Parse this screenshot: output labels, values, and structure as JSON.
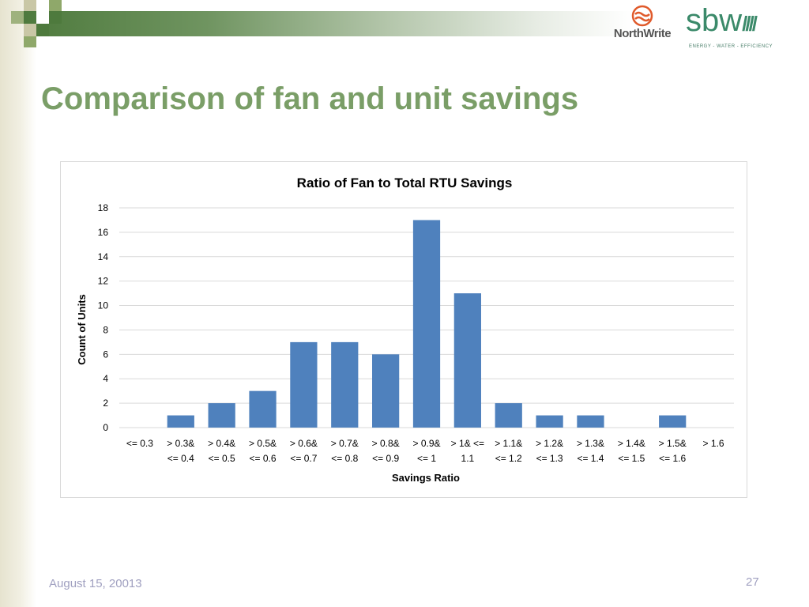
{
  "slide": {
    "title": "Comparison of fan and unit savings",
    "footer_date": "August 15, 20013",
    "page_number": "27",
    "logos": {
      "northwrite": "NorthWrite",
      "sbw": "sbw",
      "sbw_tagline": "ENERGY - WATER - EFFICIENCY"
    },
    "colors": {
      "title": "#7a9e67",
      "bar": "#4f81bd",
      "band_dark": "#4e7a3d",
      "northwrite_icon": "#e05a2b",
      "sbw": "#3b8a6a"
    }
  },
  "chart_data": {
    "type": "bar",
    "title": "Ratio of Fan to Total RTU Savings",
    "xlabel": "Savings Ratio",
    "ylabel": "Count of Units",
    "categories": [
      [
        "<= 0.3"
      ],
      [
        "> 0.3&",
        "<= 0.4"
      ],
      [
        "> 0.4&",
        "<= 0.5"
      ],
      [
        "> 0.5&",
        "<= 0.6"
      ],
      [
        "> 0.6&",
        "<= 0.7"
      ],
      [
        "> 0.7&",
        "<= 0.8"
      ],
      [
        "> 0.8&",
        "<= 0.9"
      ],
      [
        "> 0.9&",
        "<= 1"
      ],
      [
        "> 1& <=",
        "1.1"
      ],
      [
        "> 1.1&",
        "<= 1.2"
      ],
      [
        "> 1.2&",
        "<= 1.3"
      ],
      [
        "> 1.3&",
        "<= 1.4"
      ],
      [
        "> 1.4&",
        "<= 1.5"
      ],
      [
        "> 1.5&",
        "<= 1.6"
      ],
      [
        "> 1.6"
      ]
    ],
    "values": [
      0,
      1,
      2,
      3,
      7,
      7,
      6,
      17,
      11,
      2,
      1,
      1,
      0,
      1,
      0
    ],
    "ylim": [
      0,
      18
    ],
    "yticks": [
      0,
      2,
      4,
      6,
      8,
      10,
      12,
      14,
      16,
      18
    ],
    "grid": true,
    "legend": "none"
  }
}
